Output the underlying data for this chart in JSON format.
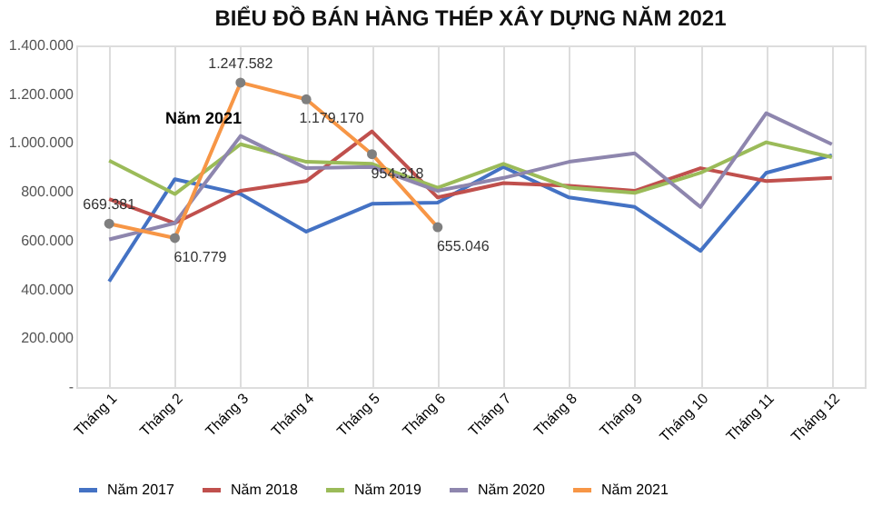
{
  "chart_data": {
    "type": "line",
    "title": "BIỂU ĐỒ BÁN HÀNG THÉP XÂY DỰNG NĂM 2021",
    "categories": [
      "Tháng 1",
      "Tháng 2",
      "Tháng 3",
      "Tháng 4",
      "Tháng 5",
      "Tháng 6",
      "Tháng 7",
      "Tháng 8",
      "Tháng 9",
      "Tháng 10",
      "Tháng 11",
      "Tháng 12"
    ],
    "series": [
      {
        "name": "Năm 2017",
        "color": "#4472c4",
        "marker": "none",
        "values": [
          433000,
          852000,
          791000,
          637000,
          751000,
          756000,
          902000,
          777000,
          738000,
          558000,
          878000,
          950000
        ]
      },
      {
        "name": "Năm 2018",
        "color": "#c0504d",
        "marker": "none",
        "values": [
          770000,
          672000,
          804000,
          844000,
          1048000,
          777000,
          836000,
          825000,
          804000,
          897000,
          844000,
          857000
        ]
      },
      {
        "name": "Năm 2019",
        "color": "#9bbb59",
        "marker": "none",
        "values": [
          928000,
          791000,
          995000,
          923000,
          915000,
          817000,
          915000,
          817000,
          796000,
          878000,
          1003000,
          942000
        ]
      },
      {
        "name": "Năm 2020",
        "color": "#8e86ae",
        "marker": "none",
        "values": [
          605000,
          672000,
          1029000,
          897000,
          902000,
          804000,
          857000,
          923000,
          958000,
          738000,
          1122000,
          995000
        ]
      },
      {
        "name": "Năm 2021",
        "color": "#f79646",
        "marker": "circle",
        "values": [
          669381,
          610779,
          1247582,
          1179170,
          954318,
          655046,
          null,
          null,
          null,
          null,
          null,
          null
        ],
        "value_labels": [
          "669.381",
          "610.779",
          "1.247.582",
          "1.179.170",
          "954.318",
          "655.046",
          null,
          null,
          null,
          null,
          null,
          null
        ]
      }
    ],
    "ylim": [
      0,
      1400000
    ],
    "yticks": [
      {
        "value": 0,
        "label": "-"
      },
      {
        "value": 200000,
        "label": "200.000"
      },
      {
        "value": 400000,
        "label": "400.000"
      },
      {
        "value": 600000,
        "label": "600.000"
      },
      {
        "value": 800000,
        "label": "800.000"
      },
      {
        "value": 1000000,
        "label": "1.000.000"
      },
      {
        "value": 1200000,
        "label": "1.200.000"
      },
      {
        "value": 1400000,
        "label": "1.400.000"
      }
    ],
    "annotations": [
      "Năm 2021"
    ],
    "grid": "x",
    "legend": "bottom"
  }
}
